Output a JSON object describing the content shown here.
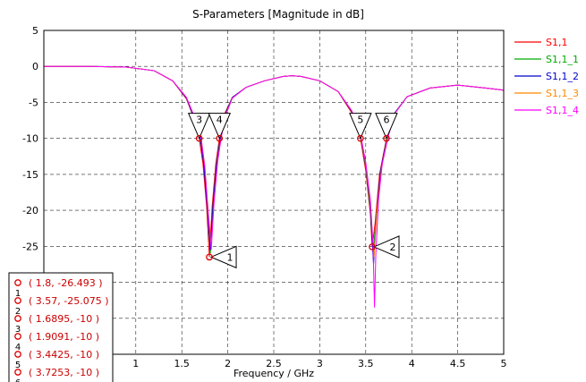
{
  "chart_data": {
    "type": "line",
    "title": "S-Parameters [Magnitude in dB]",
    "xlabel": "Frequency / GHz",
    "ylabel": "",
    "xlim": [
      0,
      5
    ],
    "ylim": [
      -40,
      5
    ],
    "xticks": [
      1,
      1.5,
      2,
      2.5,
      3,
      3.5,
      4,
      4.5,
      5
    ],
    "yticks": [
      5,
      0,
      -5,
      -10,
      -15,
      -20,
      -25,
      -30
    ],
    "grid": true,
    "legend_position": "right",
    "series": [
      {
        "name": "S1,1",
        "color": "#ff0000",
        "x": [
          0,
          0.5,
          0.9,
          1.2,
          1.4,
          1.55,
          1.65,
          1.6895,
          1.73,
          1.77,
          1.8,
          1.83,
          1.87,
          1.9091,
          1.95,
          2.05,
          2.2,
          2.4,
          2.6,
          2.7,
          2.8,
          3.0,
          3.2,
          3.35,
          3.4425,
          3.5,
          3.55,
          3.57,
          3.6,
          3.65,
          3.7253,
          3.8,
          3.95,
          4.2,
          4.5,
          4.8,
          5.0
        ],
        "y": [
          0,
          0,
          -0.1,
          -0.6,
          -2.0,
          -4.5,
          -7.8,
          -10,
          -13.5,
          -19.5,
          -26.493,
          -19.5,
          -13.5,
          -10,
          -7.0,
          -4.3,
          -2.9,
          -2.0,
          -1.4,
          -1.3,
          -1.4,
          -2.0,
          -3.5,
          -6.5,
          -10,
          -14.5,
          -20.5,
          -25.075,
          -22.0,
          -15.0,
          -10,
          -6.8,
          -4.2,
          -3.0,
          -2.6,
          -3.0,
          -3.3
        ]
      },
      {
        "name": "S1,1_1",
        "color": "#00aa00",
        "x": [
          0,
          0.5,
          0.9,
          1.2,
          1.4,
          1.55,
          1.65,
          1.7,
          1.74,
          1.78,
          1.81,
          1.84,
          1.88,
          1.92,
          1.96,
          2.05,
          2.2,
          2.4,
          2.6,
          2.7,
          2.8,
          3.0,
          3.2,
          3.35,
          3.45,
          3.5,
          3.55,
          3.58,
          3.61,
          3.66,
          3.73,
          3.8,
          3.95,
          4.2,
          4.5,
          4.8,
          5.0
        ],
        "y": [
          0,
          0,
          -0.1,
          -0.6,
          -2.0,
          -4.4,
          -7.6,
          -9.8,
          -13.5,
          -19.8,
          -26.0,
          -19.0,
          -13.2,
          -9.8,
          -6.9,
          -4.3,
          -2.9,
          -2.0,
          -1.4,
          -1.3,
          -1.4,
          -2.0,
          -3.5,
          -6.3,
          -10.2,
          -14.0,
          -20.0,
          -26.0,
          -21.5,
          -14.8,
          -9.8,
          -6.7,
          -4.2,
          -3.0,
          -2.6,
          -3.0,
          -3.3
        ]
      },
      {
        "name": "S1,1_2",
        "color": "#0000cc",
        "x": [
          0,
          0.5,
          0.9,
          1.2,
          1.4,
          1.55,
          1.65,
          1.7,
          1.74,
          1.78,
          1.81,
          1.84,
          1.88,
          1.92,
          1.96,
          2.05,
          2.2,
          2.4,
          2.6,
          2.7,
          2.8,
          3.0,
          3.2,
          3.35,
          3.45,
          3.5,
          3.55,
          3.585,
          3.615,
          3.66,
          3.735,
          3.8,
          3.95,
          4.2,
          4.5,
          4.8,
          5.0
        ],
        "y": [
          0,
          0,
          -0.1,
          -0.6,
          -2.0,
          -4.4,
          -7.7,
          -9.9,
          -13.7,
          -20.0,
          -25.5,
          -19.2,
          -13.4,
          -9.9,
          -7.0,
          -4.3,
          -2.9,
          -2.0,
          -1.4,
          -1.3,
          -1.4,
          -2.0,
          -3.5,
          -6.3,
          -10.1,
          -13.8,
          -19.5,
          -27.5,
          -21.0,
          -14.6,
          -9.7,
          -6.7,
          -4.2,
          -3.0,
          -2.6,
          -3.0,
          -3.3
        ]
      },
      {
        "name": "S1,1_3",
        "color": "#ff8800",
        "x": [
          0,
          0.5,
          0.9,
          1.2,
          1.4,
          1.55,
          1.65,
          1.71,
          1.75,
          1.79,
          1.82,
          1.85,
          1.89,
          1.93,
          1.97,
          2.05,
          2.2,
          2.4,
          2.6,
          2.7,
          2.8,
          3.0,
          3.2,
          3.35,
          3.45,
          3.5,
          3.55,
          3.59,
          3.62,
          3.67,
          3.74,
          3.8,
          3.95,
          4.2,
          4.5,
          4.8,
          5.0
        ],
        "y": [
          0,
          0,
          -0.1,
          -0.6,
          -2.0,
          -4.3,
          -7.4,
          -9.9,
          -13.8,
          -20.5,
          -25.0,
          -18.8,
          -13.0,
          -9.7,
          -6.9,
          -4.4,
          -2.9,
          -2.0,
          -1.4,
          -1.3,
          -1.4,
          -2.0,
          -3.5,
          -6.2,
          -10.0,
          -13.5,
          -19.0,
          -26.5,
          -20.5,
          -14.3,
          -9.6,
          -6.8,
          -4.2,
          -3.0,
          -2.6,
          -3.0,
          -3.3
        ]
      },
      {
        "name": "S1,1_4",
        "color": "#ff00ff",
        "x": [
          0,
          0.5,
          0.9,
          1.2,
          1.4,
          1.55,
          1.65,
          1.71,
          1.75,
          1.79,
          1.82,
          1.85,
          1.89,
          1.93,
          1.97,
          2.05,
          2.2,
          2.4,
          2.6,
          2.7,
          2.8,
          3.0,
          3.2,
          3.35,
          3.45,
          3.5,
          3.55,
          3.58,
          3.595,
          3.61,
          3.64,
          3.68,
          3.75,
          3.82,
          3.95,
          4.2,
          4.5,
          4.8,
          5.0
        ],
        "y": [
          0,
          0,
          -0.1,
          -0.6,
          -2.0,
          -4.3,
          -7.4,
          -10.0,
          -14.0,
          -21.0,
          -25.5,
          -19.0,
          -13.2,
          -9.8,
          -7.0,
          -4.4,
          -2.9,
          -2.0,
          -1.4,
          -1.3,
          -1.4,
          -2.0,
          -3.5,
          -6.2,
          -9.9,
          -13.3,
          -18.5,
          -25.0,
          -33.5,
          -26.0,
          -18.5,
          -13.5,
          -9.5,
          -6.5,
          -4.2,
          -3.0,
          -2.6,
          -3.0,
          -3.3
        ]
      }
    ],
    "markers": [
      {
        "id": "1",
        "x": 1.8,
        "y": -26.493,
        "side": "right"
      },
      {
        "id": "2",
        "x": 3.57,
        "y": -25.075,
        "side": "right"
      },
      {
        "id": "3",
        "x": 1.6895,
        "y": -10,
        "side": "up"
      },
      {
        "id": "4",
        "x": 1.9091,
        "y": -10,
        "side": "up"
      },
      {
        "id": "5",
        "x": 3.4425,
        "y": -10,
        "side": "up"
      },
      {
        "id": "6",
        "x": 3.7253,
        "y": -10,
        "side": "up"
      }
    ],
    "marker_readout": [
      {
        "index": "1",
        "text": "( 1.8, -26.493 )"
      },
      {
        "index": "2",
        "text": "( 3.57, -25.075 )"
      },
      {
        "index": "3",
        "text": "( 1.6895, -10 )"
      },
      {
        "index": "4",
        "text": "( 1.9091, -10 )"
      },
      {
        "index": "5",
        "text": "( 3.4425, -10 )"
      },
      {
        "index": "6",
        "text": "( 3.7253, -10 )"
      }
    ]
  }
}
